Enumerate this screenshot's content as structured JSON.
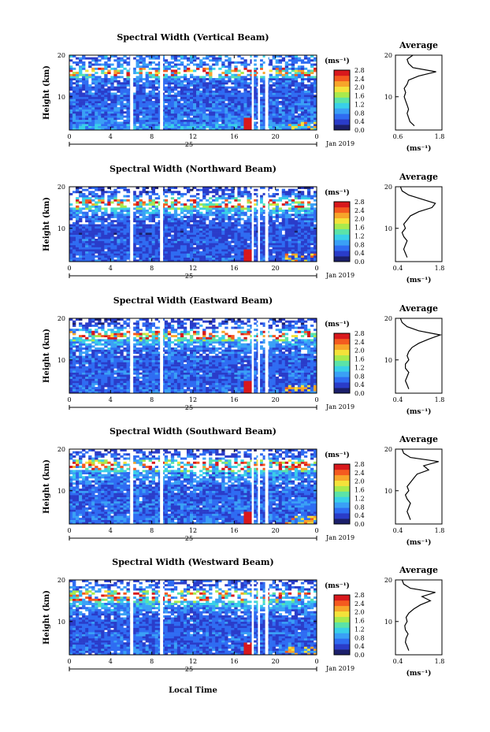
{
  "figure": {
    "date_label": "Jan 2019",
    "day_label": "25",
    "xlabel": "Local Time",
    "colorbar_unit": "(ms⁻¹)",
    "colorbar_ticks": [
      "0.0",
      "0.4",
      "0.8",
      "1.2",
      "1.6",
      "2.0",
      "2.4",
      "2.8"
    ],
    "colorscale": [
      "#1b1f6a",
      "#2a3cc9",
      "#2f6cf2",
      "#3aa0f6",
      "#39d0e8",
      "#5be3a8",
      "#a9ea4c",
      "#f4e23a",
      "#f7a52a",
      "#f45a1f",
      "#d8181c"
    ]
  },
  "chart_data": [
    {
      "type": "heatmap",
      "title": "Spectral Width (Vertical Beam)",
      "ylabel": "Height (km)",
      "yticks": [
        "10",
        "20"
      ],
      "ylim": [
        2,
        20
      ],
      "xticks": [
        "0",
        "4",
        "8",
        "12",
        "16",
        "20",
        "0"
      ],
      "xlim": [
        0,
        24
      ],
      "zlim": [
        0.0,
        2.8
      ],
      "z_unit": "ms⁻¹",
      "data_gaps_hours": [
        [
          5.9,
          6.2
        ],
        [
          8.8,
          9.1
        ],
        [
          17.7,
          17.9
        ],
        [
          18.3,
          18.5
        ],
        [
          19.0,
          19.3
        ]
      ],
      "average_profile": {
        "title": "Average",
        "xlabel": "(ms⁻¹)",
        "xticks": [
          "0.6",
          "1.8"
        ],
        "xlim": [
          0.4,
          2.0
        ],
        "yticks": [
          "10",
          "20"
        ],
        "height_km": [
          3,
          4,
          5,
          6,
          7,
          8,
          9,
          10,
          11,
          12,
          13,
          14,
          15,
          16,
          17,
          18,
          19,
          20
        ],
        "width": [
          1.05,
          0.9,
          0.85,
          0.8,
          0.85,
          0.8,
          0.75,
          0.7,
          0.75,
          0.7,
          0.8,
          0.85,
          1.2,
          1.8,
          1.0,
          0.85,
          0.8,
          1.0
        ]
      }
    },
    {
      "type": "heatmap",
      "title": "Spectral Width (Northward Beam)",
      "ylabel": "Height (km)",
      "yticks": [
        "10",
        "20"
      ],
      "ylim": [
        2,
        20
      ],
      "xticks": [
        "0",
        "4",
        "8",
        "12",
        "16",
        "20",
        "0"
      ],
      "xlim": [
        0,
        24
      ],
      "zlim": [
        0.0,
        2.8
      ],
      "z_unit": "ms⁻¹",
      "data_gaps_hours": [
        [
          5.9,
          6.2
        ],
        [
          8.8,
          9.1
        ],
        [
          17.7,
          17.9
        ],
        [
          18.3,
          18.5
        ],
        [
          19.0,
          19.3
        ]
      ],
      "average_profile": {
        "title": "Average",
        "xlabel": "(ms⁻¹)",
        "xticks": [
          "0.4",
          "1.8"
        ],
        "xlim": [
          0.4,
          1.8
        ],
        "yticks": [
          "10",
          "20"
        ],
        "height_km": [
          3,
          4,
          5,
          6,
          7,
          8,
          9,
          10,
          11,
          12,
          13,
          14,
          15,
          16,
          17,
          18,
          19,
          20
        ],
        "width": [
          0.75,
          0.7,
          0.65,
          0.7,
          0.75,
          0.65,
          0.6,
          0.7,
          0.65,
          0.75,
          0.85,
          1.1,
          1.5,
          1.6,
          1.2,
          0.8,
          0.6,
          0.55
        ]
      }
    },
    {
      "type": "heatmap",
      "title": "Spectral Width (Eastward Beam)",
      "ylabel": "Height (km)",
      "yticks": [
        "10",
        "20"
      ],
      "ylim": [
        2,
        20
      ],
      "xticks": [
        "0",
        "4",
        "8",
        "12",
        "16",
        "20",
        "0"
      ],
      "xlim": [
        0,
        24
      ],
      "zlim": [
        0.0,
        2.8
      ],
      "z_unit": "ms⁻¹",
      "data_gaps_hours": [
        [
          5.9,
          6.2
        ],
        [
          8.8,
          9.1
        ],
        [
          17.7,
          17.9
        ],
        [
          18.3,
          18.5
        ],
        [
          19.0,
          19.3
        ]
      ],
      "average_profile": {
        "title": "Average",
        "xlabel": "(ms⁻¹)",
        "xticks": [
          "0.4",
          "1.8"
        ],
        "xlim": [
          0.4,
          1.8
        ],
        "yticks": [
          "10",
          "20"
        ],
        "height_km": [
          3,
          4,
          5,
          6,
          7,
          8,
          9,
          10,
          11,
          12,
          13,
          14,
          15,
          16,
          17,
          18,
          19,
          20
        ],
        "width": [
          0.8,
          0.75,
          0.7,
          0.75,
          0.8,
          0.7,
          0.7,
          0.8,
          0.75,
          0.8,
          0.9,
          1.1,
          1.4,
          1.75,
          1.1,
          0.75,
          0.6,
          0.55
        ]
      }
    },
    {
      "type": "heatmap",
      "title": "Spectral Width (Southward Beam)",
      "ylabel": "Height (km)",
      "yticks": [
        "10",
        "20"
      ],
      "ylim": [
        2,
        20
      ],
      "xticks": [
        "0",
        "4",
        "8",
        "12",
        "16",
        "20",
        "0"
      ],
      "xlim": [
        0,
        24
      ],
      "zlim": [
        0.0,
        2.8
      ],
      "z_unit": "ms⁻¹",
      "data_gaps_hours": [
        [
          5.9,
          6.2
        ],
        [
          8.8,
          9.1
        ],
        [
          17.7,
          17.9
        ],
        [
          18.3,
          18.5
        ],
        [
          19.0,
          19.3
        ]
      ],
      "average_profile": {
        "title": "Average",
        "xlabel": "(ms⁻¹)",
        "xticks": [
          "0.4",
          "1.8"
        ],
        "xlim": [
          0.4,
          1.8
        ],
        "yticks": [
          "10",
          "20"
        ],
        "height_km": [
          3,
          4,
          5,
          6,
          7,
          8,
          9,
          10,
          11,
          12,
          13,
          14,
          15,
          16,
          17,
          18,
          19,
          20
        ],
        "width": [
          0.85,
          0.8,
          0.75,
          0.8,
          0.85,
          0.75,
          0.7,
          0.8,
          0.75,
          0.85,
          0.95,
          1.05,
          1.4,
          1.25,
          1.7,
          0.85,
          0.65,
          0.6
        ]
      }
    },
    {
      "type": "heatmap",
      "title": "Spectral Width (Westward Beam)",
      "ylabel": "Height (km)",
      "yticks": [
        "10",
        "20"
      ],
      "ylim": [
        2,
        20
      ],
      "xticks": [
        "0",
        "4",
        "8",
        "12",
        "16",
        "20",
        "0"
      ],
      "xlim": [
        0,
        24
      ],
      "zlim": [
        0.0,
        2.8
      ],
      "z_unit": "ms⁻¹",
      "data_gaps_hours": [
        [
          5.9,
          6.2
        ],
        [
          8.8,
          9.1
        ],
        [
          17.7,
          17.9
        ],
        [
          18.3,
          18.5
        ],
        [
          19.0,
          19.3
        ]
      ],
      "average_profile": {
        "title": "Average",
        "xlabel": "(ms⁻¹)",
        "xticks": [
          "0.4",
          "1.8"
        ],
        "xlim": [
          0.4,
          1.8
        ],
        "yticks": [
          "10",
          "20"
        ],
        "height_km": [
          3,
          4,
          5,
          6,
          7,
          8,
          9,
          10,
          11,
          12,
          13,
          14,
          15,
          16,
          17,
          18,
          19,
          20
        ],
        "width": [
          0.8,
          0.75,
          0.7,
          0.72,
          0.78,
          0.7,
          0.68,
          0.75,
          0.72,
          0.8,
          0.95,
          1.15,
          1.45,
          1.2,
          1.6,
          0.85,
          0.65,
          0.6
        ]
      }
    }
  ]
}
